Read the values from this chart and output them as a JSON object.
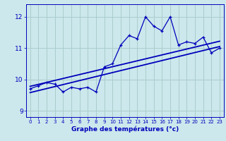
{
  "xlabel": "Graphe des températures (°c)",
  "x_values": [
    0,
    1,
    2,
    3,
    4,
    5,
    6,
    7,
    8,
    9,
    10,
    11,
    12,
    13,
    14,
    15,
    16,
    17,
    18,
    19,
    20,
    21,
    22,
    23
  ],
  "y_values": [
    9.7,
    9.8,
    9.9,
    9.85,
    9.6,
    9.75,
    9.7,
    9.75,
    9.6,
    10.4,
    10.5,
    11.1,
    11.4,
    11.3,
    12.0,
    11.7,
    11.55,
    12.0,
    11.1,
    11.2,
    11.15,
    11.35,
    10.85,
    11.0
  ],
  "ylim": [
    8.8,
    12.4
  ],
  "xlim": [
    -0.5,
    23.5
  ],
  "bg_color": "#cce8ec",
  "line_color": "#0000bb",
  "grid_color": "#aacccc",
  "trend1_start_x": 0,
  "trend1_start_y": 9.58,
  "trend1_end_x": 23,
  "trend1_end_y": 11.05,
  "trend2_start_x": 0,
  "trend2_start_y": 9.78,
  "trend2_end_x": 23,
  "trend2_end_y": 11.22
}
